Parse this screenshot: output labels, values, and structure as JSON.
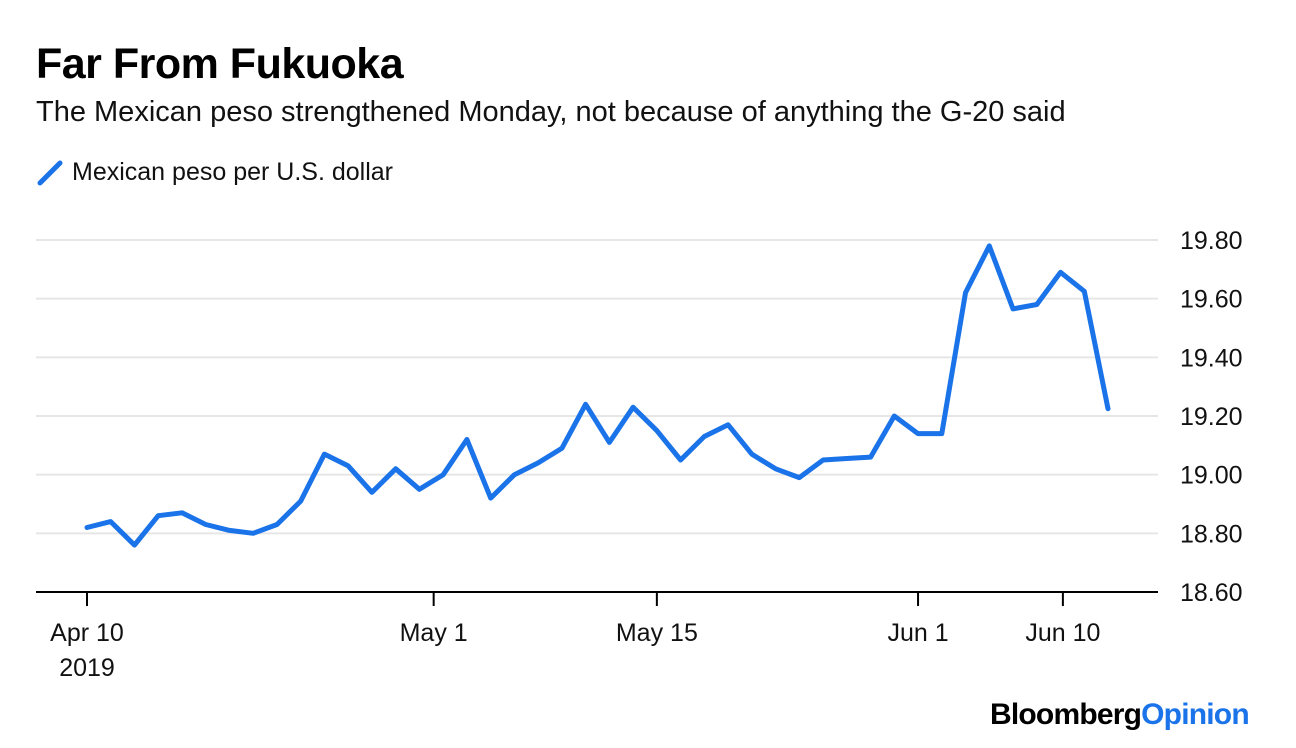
{
  "chart_data": {
    "type": "line",
    "title": "Far From Fukuoka",
    "subtitle": "The Mexican peso strengthened Monday, not because of anything the G-20 said",
    "series": [
      {
        "name": "Mexican peso per U.S. dollar",
        "color": "#1a73e8",
        "values": [
          18.82,
          18.84,
          18.76,
          18.86,
          18.87,
          18.83,
          18.81,
          18.8,
          18.83,
          18.91,
          19.07,
          19.03,
          18.94,
          19.02,
          18.95,
          19.0,
          19.12,
          18.92,
          19.0,
          19.04,
          19.09,
          19.24,
          19.11,
          19.23,
          19.15,
          19.05,
          19.13,
          19.17,
          19.07,
          19.02,
          18.99,
          19.05,
          19.055,
          19.06,
          19.2,
          19.14,
          19.14,
          19.62,
          19.78,
          19.565,
          19.58,
          19.69,
          19.625,
          19.225
        ]
      }
    ],
    "x_ticks": [
      {
        "label": "Apr 10",
        "sublabel": "2019",
        "index": 0
      },
      {
        "label": "May 1",
        "index": 14.6
      },
      {
        "label": "May 15",
        "index": 24
      },
      {
        "label": "Jun 1",
        "index": 35
      },
      {
        "label": "Jun 10",
        "index": 41.1
      }
    ],
    "y_ticks": [
      "19.80",
      "19.60",
      "19.40",
      "19.20",
      "19.00",
      "18.80",
      "18.60"
    ],
    "ylim": [
      18.6,
      19.8
    ],
    "grid": true,
    "legend_position": "top-left"
  },
  "brand": {
    "name": "Bloomberg",
    "suffix": "Opinion"
  }
}
